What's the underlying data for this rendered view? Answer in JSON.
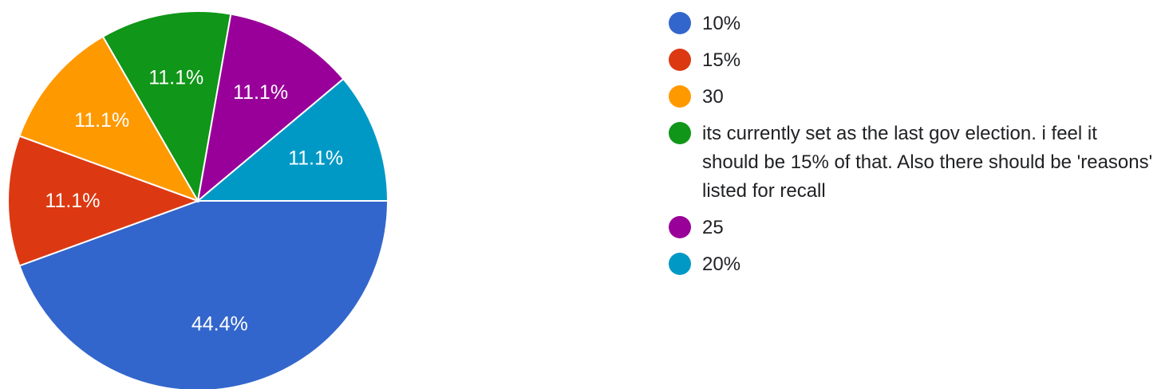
{
  "chart_data": {
    "type": "pie",
    "slices": [
      {
        "label": "10%",
        "value": 44.4,
        "display": "44.4%",
        "color": "#3366cc"
      },
      {
        "label": "15%",
        "value": 11.1,
        "display": "11.1%",
        "color": "#dc3912"
      },
      {
        "label": "30",
        "value": 11.1,
        "display": "11.1%",
        "color": "#ff9900"
      },
      {
        "label": "its currently set as the last gov election. i feel it should be 15% of that. Also there should be 'reasons' listed for recall",
        "value": 11.1,
        "display": "11.1%",
        "color": "#109618"
      },
      {
        "label": "25",
        "value": 11.1,
        "display": "11.1%",
        "color": "#990099"
      },
      {
        "label": "20%",
        "value": 11.1,
        "display": "11.1%",
        "color": "#0099c6"
      }
    ],
    "legend_position": "right"
  }
}
